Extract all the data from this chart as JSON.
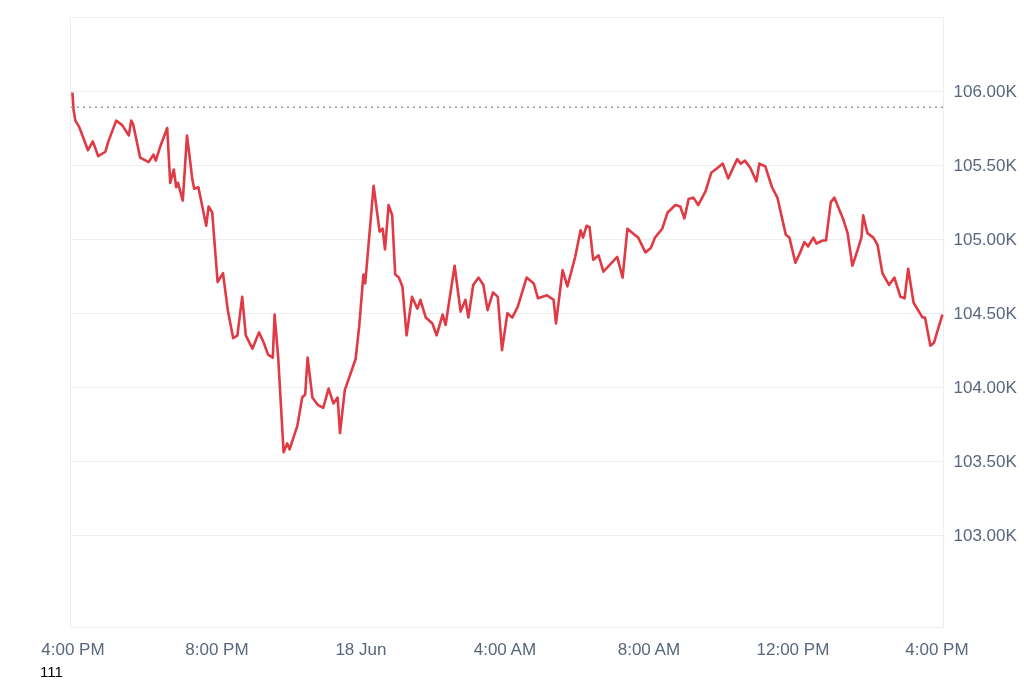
{
  "chart_data": {
    "type": "line",
    "grid": "y",
    "xlim": [
      "--06-17T15:56",
      "--06-18T16:11"
    ],
    "xticks": [
      {
        "value": "--06-17T16:00",
        "label": "4:00 PM"
      },
      {
        "value": "--06-17T20:00",
        "label": "8:00 PM"
      },
      {
        "value": "--06-18T00:00",
        "label": "18 Jun"
      },
      {
        "value": "--06-18T04:00",
        "label": "4:00 AM"
      },
      {
        "value": "--06-18T08:00",
        "label": "8:00 AM"
      },
      {
        "value": "--06-18T12:00",
        "label": "12:00 PM"
      },
      {
        "value": "--06-18T16:00",
        "label": "4:00 PM"
      }
    ],
    "ylim": [
      102380,
      106500
    ],
    "yticks": [
      {
        "value": 103000,
        "label": "103.00K"
      },
      {
        "value": 103500,
        "label": "103.50K"
      },
      {
        "value": 104000,
        "label": "104.00K"
      },
      {
        "value": 104500,
        "label": "104.50K"
      },
      {
        "value": 105000,
        "label": "105.00K"
      },
      {
        "value": 105500,
        "label": "105.50K"
      },
      {
        "value": 106000,
        "label": "106.00K"
      }
    ],
    "ref_lines": [
      {
        "axis": "y",
        "value": 105890,
        "color": "#999999",
        "line_style": "dotted"
      }
    ],
    "annotations": [
      "111"
    ],
    "series": [
      {
        "color": "#e03a45",
        "x": [
          "--06-17T16:00",
          "--06-17T16:02",
          "--06-17T16:05",
          "--06-17T16:11",
          "--06-17T16:26",
          "--06-17T16:34",
          "--06-17T16:43",
          "--06-17T16:55",
          "--06-17T17:00",
          "--06-17T17:13",
          "--06-17T17:23",
          "--06-17T17:34",
          "--06-17T17:38",
          "--06-17T17:41",
          "--06-17T17:53",
          "--06-17T18:07",
          "--06-17T18:15",
          "--06-17T18:19",
          "--06-17T18:26",
          "--06-17T18:38",
          "--06-17T18:43",
          "--06-17T18:49",
          "--06-17T18:53",
          "--06-17T18:56",
          "--06-17T19:04",
          "--06-17T19:11",
          "--06-17T19:20",
          "--06-17T19:23",
          "--06-17T19:30",
          "--06-17T19:43",
          "--06-17T19:47",
          "--06-17T19:53",
          "--06-17T20:02",
          "--06-17T20:11",
          "--06-17T20:19",
          "--06-17T20:28",
          "--06-17T20:35",
          "--06-17T20:43",
          "--06-17T20:49",
          "--06-17T21:00",
          "--06-17T21:11",
          "--06-17T21:19",
          "--06-17T21:26",
          "--06-17T21:34",
          "--06-17T21:37",
          "--06-17T21:43",
          "--06-17T21:52",
          "--06-17T21:58",
          "--06-17T22:02",
          "--06-17T22:15",
          "--06-17T22:23",
          "--06-17T22:28",
          "--06-17T22:32",
          "--06-17T22:40",
          "--06-17T22:49",
          "--06-17T22:58",
          "--06-17T23:07",
          "--06-17T23:15",
          "--06-17T23:22",
          "--06-17T23:26",
          "--06-17T23:34",
          "--06-17T23:40",
          "--06-17T23:52",
          "--06-17T23:58",
          "--06-18T00:05",
          "--06-18T00:08",
          "--06-18T00:22",
          "--06-18T00:32",
          "--06-18T00:37",
          "--06-18T00:41",
          "--06-18T00:47",
          "--06-18T00:53",
          "--06-18T00:58",
          "--06-18T01:04",
          "--06-18T01:10",
          "--06-18T01:17",
          "--06-18T01:26",
          "--06-18T01:35",
          "--06-18T01:40",
          "--06-18T01:49",
          "--06-18T02:00",
          "--06-18T02:07",
          "--06-18T02:17",
          "--06-18T02:22",
          "--06-18T02:37",
          "--06-18T02:47",
          "--06-18T02:55",
          "--06-18T03:00",
          "--06-18T03:08",
          "--06-18T03:17",
          "--06-18T03:25",
          "--06-18T03:32",
          "--06-18T03:41",
          "--06-18T03:49",
          "--06-18T03:56",
          "--06-18T04:05",
          "--06-18T04:13",
          "--06-18T04:22",
          "--06-18T04:37",
          "--06-18T04:49",
          "--06-18T04:56",
          "--06-18T05:11",
          "--06-18T05:22",
          "--06-18T05:26",
          "--06-18T05:37",
          "--06-18T05:45",
          "--06-18T05:58",
          "--06-18T06:07",
          "--06-18T06:11",
          "--06-18T06:17",
          "--06-18T06:22",
          "--06-18T06:28",
          "--06-18T06:37",
          "--06-18T06:45",
          "--06-18T07:08",
          "--06-18T07:17",
          "--06-18T07:25",
          "--06-18T07:37",
          "--06-18T07:43",
          "--06-18T07:55",
          "--06-18T08:04",
          "--06-18T08:11",
          "--06-18T08:23",
          "--06-18T08:32",
          "--06-18T08:45",
          "--06-18T08:53",
          "--06-18T09:00",
          "--06-18T09:07",
          "--06-18T09:15",
          "--06-18T09:23",
          "--06-18T09:35",
          "--06-18T09:45",
          "--06-18T09:52",
          "--06-18T10:04",
          "--06-18T10:13",
          "--06-18T10:28",
          "--06-18T10:34",
          "--06-18T10:41",
          "--06-18T10:50",
          "--06-18T11:00",
          "--06-18T11:05",
          "--06-18T11:15",
          "--06-18T11:26",
          "--06-18T11:35",
          "--06-18T11:49",
          "--06-18T11:55",
          "--06-18T12:05",
          "--06-18T12:13",
          "--06-18T12:20",
          "--06-18T12:26",
          "--06-18T12:35",
          "--06-18T12:40",
          "--06-18T12:50",
          "--06-18T12:56",
          "--06-18T13:04",
          "--06-18T13:10",
          "--06-18T13:17",
          "--06-18T13:25",
          "--06-18T13:32",
          "--06-18T13:40",
          "--06-18T13:49",
          "--06-18T13:55",
          "--06-18T13:58",
          "--06-18T14:05",
          "--06-18T14:15",
          "--06-18T14:22",
          "--06-18T14:30",
          "--06-18T14:41",
          "--06-18T14:50",
          "--06-18T15:00",
          "--06-18T15:07",
          "--06-18T15:13",
          "--06-18T15:22",
          "--06-18T15:37",
          "--06-18T15:41",
          "--06-18T15:50",
          "--06-18T15:56",
          "--06-18T16:10"
        ],
        "values": [
          105990,
          105870,
          105800,
          105760,
          105600,
          105660,
          105560,
          105590,
          105660,
          105800,
          105770,
          105700,
          105800,
          105780,
          105550,
          105520,
          105570,
          105530,
          105620,
          105750,
          105380,
          105470,
          105350,
          105380,
          105260,
          105700,
          105400,
          105340,
          105350,
          105090,
          105220,
          105180,
          104710,
          104770,
          104520,
          104330,
          104350,
          104610,
          104350,
          104260,
          104370,
          104300,
          104220,
          104200,
          104490,
          104200,
          103560,
          103620,
          103580,
          103740,
          103930,
          103950,
          104200,
          103930,
          103880,
          103860,
          103990,
          103890,
          103930,
          103690,
          103980,
          104050,
          104190,
          104410,
          104760,
          104700,
          105360,
          105050,
          105070,
          104930,
          105230,
          105160,
          104760,
          104740,
          104680,
          104350,
          104610,
          104530,
          104590,
          104470,
          104430,
          104350,
          104490,
          104420,
          104820,
          104510,
          104590,
          104470,
          104690,
          104740,
          104690,
          104520,
          104640,
          104610,
          104250,
          104500,
          104470,
          104540,
          104740,
          104700,
          104600,
          104620,
          104590,
          104430,
          104790,
          104680,
          104880,
          105060,
          105010,
          105090,
          105080,
          104860,
          104890,
          104780,
          104880,
          104740,
          105070,
          105030,
          105010,
          104910,
          104940,
          105010,
          105070,
          105180,
          105230,
          105220,
          105140,
          105270,
          105280,
          105230,
          105320,
          105450,
          105470,
          105510,
          105410,
          105540,
          105510,
          105530,
          105480,
          105390,
          105510,
          105490,
          105350,
          105280,
          105030,
          105010,
          104840,
          104910,
          104980,
          104950,
          105010,
          104970,
          104990,
          104990,
          105250,
          105280,
          105210,
          105130,
          105040,
          104820,
          104930,
          105010,
          105160,
          105040,
          105010,
          104960,
          104770,
          104690,
          104740,
          104610,
          104600,
          104800,
          104570,
          104470,
          104470,
          104280,
          104300,
          104490
        ]
      }
    ]
  }
}
